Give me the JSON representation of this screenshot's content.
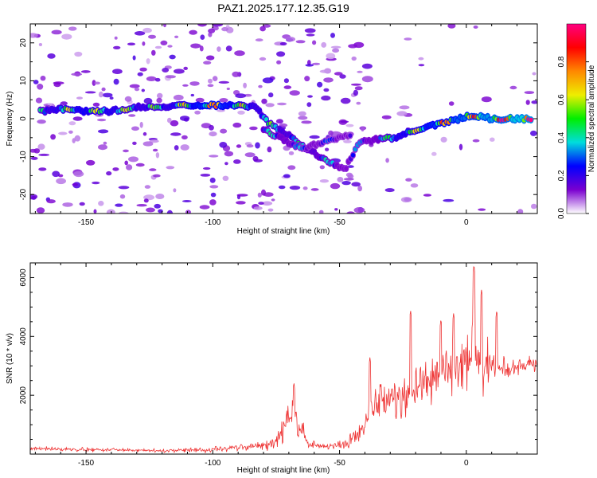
{
  "title": "PAZ1.2025.177.12.35.G19",
  "chart_data": [
    {
      "type": "heatmap",
      "xlabel": "Height of straight line (km)",
      "ylabel": "Frequency (Hz)",
      "xlim": [
        -172,
        28
      ],
      "ylim": [
        -25,
        25
      ],
      "xticks": [
        -150,
        -100,
        -50,
        0
      ],
      "yticks": [
        -20,
        -10,
        0,
        10,
        20
      ],
      "grid": false,
      "colorbar": {
        "label": "Normalized spectral amplitude",
        "range": [
          0,
          1
        ],
        "ticks": [
          0.0,
          0.2,
          0.4,
          0.6,
          0.8
        ],
        "colormap": [
          "#ffffff",
          "#7a00d0",
          "#0000ff",
          "#00dddd",
          "#00ee00",
          "#eeee00",
          "#ff8800",
          "#ff0000",
          "#ff0080"
        ]
      },
      "ridge": [
        {
          "x": -168,
          "y": 2.0,
          "amp": 0.45
        },
        {
          "x": -160,
          "y": 2.5,
          "amp": 0.55
        },
        {
          "x": -150,
          "y": 2.0,
          "amp": 0.6
        },
        {
          "x": -140,
          "y": 2.0,
          "amp": 0.55
        },
        {
          "x": -130,
          "y": 3.0,
          "amp": 0.5
        },
        {
          "x": -120,
          "y": 3.0,
          "amp": 0.5
        },
        {
          "x": -110,
          "y": 3.5,
          "amp": 0.6
        },
        {
          "x": -100,
          "y": 3.5,
          "amp": 0.75
        },
        {
          "x": -90,
          "y": 3.5,
          "amp": 0.6
        },
        {
          "x": -83,
          "y": 3.0,
          "amp": 0.5
        },
        {
          "x": -78,
          "y": -1.0,
          "amp": 0.5
        },
        {
          "x": -72,
          "y": -3.5,
          "amp": 0.45
        },
        {
          "x": -66,
          "y": -6.5,
          "amp": 0.4
        },
        {
          "x": -60,
          "y": -9.0,
          "amp": 0.4
        },
        {
          "x": -54,
          "y": -11.5,
          "amp": 0.35
        },
        {
          "x": -48,
          "y": -13.5,
          "amp": 0.3
        },
        {
          "x": -42,
          "y": -6.0,
          "amp": 0.3
        },
        {
          "x": -35,
          "y": -5.5,
          "amp": 0.35
        },
        {
          "x": -28,
          "y": -5.0,
          "amp": 0.55
        },
        {
          "x": -20,
          "y": -3.0,
          "amp": 0.6
        },
        {
          "x": -12,
          "y": -1.5,
          "amp": 0.7
        },
        {
          "x": -5,
          "y": -0.5,
          "amp": 0.75
        },
        {
          "x": 2,
          "y": 1.0,
          "amp": 0.8
        },
        {
          "x": 10,
          "y": 0.0,
          "amp": 0.85
        },
        {
          "x": 18,
          "y": 0.0,
          "amp": 0.9
        },
        {
          "x": 26,
          "y": 0.0,
          "amp": 0.95
        }
      ],
      "secondary_ridge": [
        {
          "x": -80,
          "y": -3.0,
          "amp": 0.35
        },
        {
          "x": -72,
          "y": -5.5,
          "amp": 0.35
        },
        {
          "x": -65,
          "y": -8.0,
          "amp": 0.3
        },
        {
          "x": -45,
          "y": -4.0,
          "amp": 0.25
        }
      ]
    },
    {
      "type": "line",
      "xlabel": "Height of straight line (km)",
      "ylabel": "SNR (10 * v/v)",
      "xlim": [
        -172,
        28
      ],
      "ylim": [
        0,
        6500
      ],
      "xticks": [
        -150,
        -100,
        -50,
        0
      ],
      "yticks": [
        2000,
        4000,
        6000
      ],
      "grid": false,
      "color": "#ee3333",
      "envelope": {
        "x": [
          -172,
          -150,
          -120,
          -100,
          -90,
          -80,
          -75,
          -72,
          -68,
          -65,
          -62,
          -55,
          -48,
          -42,
          -38,
          -32,
          -25,
          -20,
          -15,
          -10,
          -5,
          0,
          3,
          6,
          10,
          14,
          18,
          22,
          28
        ],
        "base": [
          200,
          150,
          120,
          150,
          220,
          300,
          400,
          900,
          1500,
          800,
          300,
          250,
          300,
          700,
          1400,
          1800,
          2000,
          2200,
          2500,
          2700,
          2900,
          3200,
          3500,
          3200,
          3000,
          2800,
          2900,
          3000,
          3100
        ],
        "amp": [
          80,
          80,
          70,
          120,
          150,
          200,
          300,
          500,
          700,
          500,
          200,
          150,
          250,
          500,
          800,
          900,
          1100,
          1000,
          1000,
          1000,
          1000,
          1200,
          1500,
          1300,
          900,
          600,
          400,
          300,
          300
        ]
      },
      "peaks": [
        {
          "x": -68,
          "y": 2450
        },
        {
          "x": -38,
          "y": 3300
        },
        {
          "x": -22,
          "y": 4900
        },
        {
          "x": -10,
          "y": 4600
        },
        {
          "x": -5,
          "y": 4800
        },
        {
          "x": 3,
          "y": 6450
        },
        {
          "x": 6,
          "y": 5600
        },
        {
          "x": 12,
          "y": 4900
        }
      ]
    }
  ]
}
